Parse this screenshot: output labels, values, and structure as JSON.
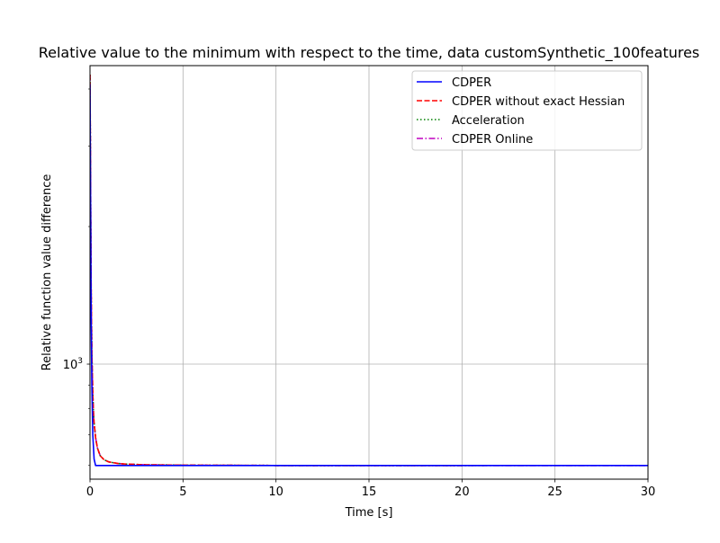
{
  "chart_data": {
    "type": "line",
    "title": "Relative value to the minimum with respect to the time, data customSynthetic_100features",
    "xlabel": "Time [s]",
    "ylabel": "Relative function value difference",
    "xlim": [
      0,
      30
    ],
    "ylim": [
      560,
      4500
    ],
    "yscale": "log",
    "grid": true,
    "legend_position": "upper right",
    "x_ticks": [
      0,
      5,
      10,
      15,
      20,
      25,
      30
    ],
    "x_tick_labels": [
      "0",
      "5",
      "10",
      "15",
      "20",
      "25",
      "30"
    ],
    "y_major_ticks": [
      1000
    ],
    "y_tick_label": {
      "base": "10",
      "exponent": "3"
    },
    "y_minor_ticks": [
      600,
      700,
      800,
      900,
      2000,
      3000,
      4000
    ],
    "series": [
      {
        "name": "CDPER",
        "color": "#0000ff",
        "dash": "solid",
        "x": [
          0.0,
          0.03,
          0.06,
          0.1,
          0.15,
          0.22,
          0.3,
          5,
          10,
          15,
          20,
          25,
          30
        ],
        "y": [
          4100,
          2300,
          1300,
          900,
          700,
          620,
          600,
          600,
          600,
          600,
          600,
          600,
          600
        ]
      },
      {
        "name": "CDPER without exact Hessian",
        "color": "#ff0000",
        "dash": "dashed",
        "x": [
          0.0,
          0.03,
          0.06,
          0.1,
          0.15,
          0.2,
          0.3,
          0.4,
          0.55,
          0.75,
          1.0,
          1.5,
          2.0,
          3.0,
          5,
          10,
          15,
          20
        ],
        "y": [
          4300,
          2500,
          1500,
          1050,
          860,
          760,
          690,
          655,
          630,
          618,
          611,
          606,
          604,
          602,
          601,
          600,
          600,
          600
        ]
      },
      {
        "name": "Acceleration",
        "color": "#008000",
        "dash": "dotted",
        "x": [
          0.0,
          0.03,
          0.06,
          0.1,
          0.15,
          0.2,
          0.3,
          0.4,
          0.55,
          0.75,
          1.0,
          1.5,
          2.0,
          3.0,
          5,
          10,
          15,
          20,
          21.3
        ],
        "y": [
          4300,
          2500,
          1500,
          1050,
          860,
          760,
          690,
          655,
          630,
          618,
          611,
          606,
          604,
          602,
          601,
          600,
          600,
          600,
          600
        ]
      },
      {
        "name": "CDPER Online",
        "color": "#bf00bf",
        "dash": "dashdot",
        "x": [
          0.0,
          0.03,
          0.06,
          0.1,
          0.15,
          0.2,
          0.3,
          0.4,
          0.55,
          0.75,
          1.0,
          1.5,
          2.0,
          3.0,
          5,
          10,
          15,
          20,
          25,
          30
        ],
        "y": [
          4300,
          2500,
          1500,
          1050,
          860,
          760,
          690,
          655,
          630,
          618,
          611,
          606,
          604,
          602,
          601,
          600,
          600,
          600,
          600,
          600
        ]
      }
    ]
  }
}
